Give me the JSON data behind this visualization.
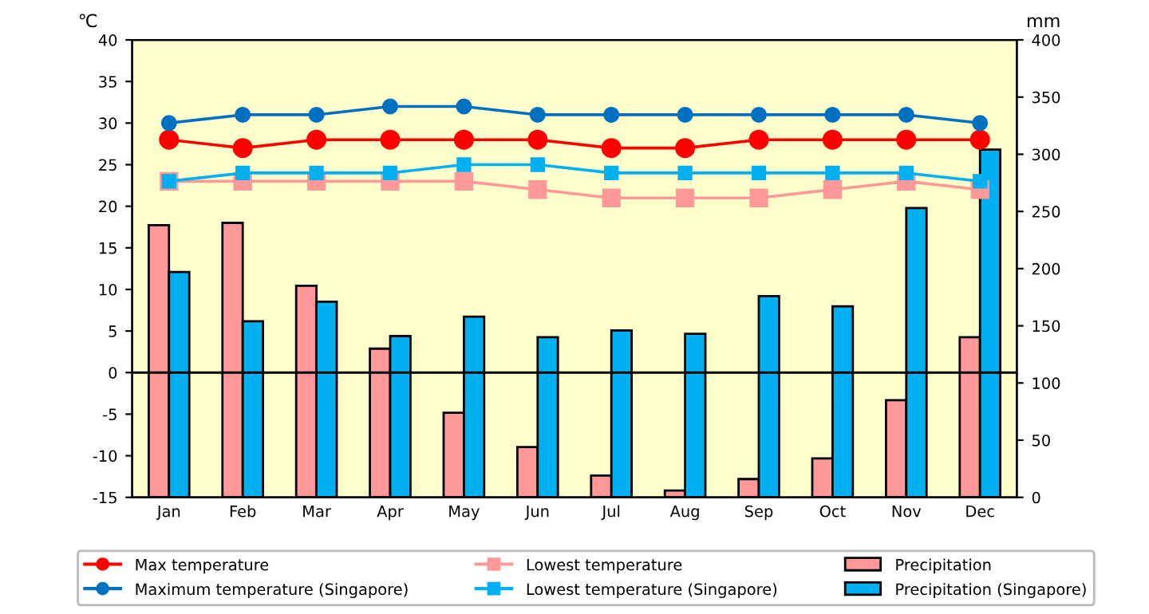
{
  "chart_data": {
    "type": "line",
    "ylabel": "℃",
    "y2label": "mm",
    "categories": [
      "Jan",
      "Feb",
      "Mar",
      "Apr",
      "May",
      "Jun",
      "Jul",
      "Aug",
      "Sep",
      "Oct",
      "Nov",
      "Dec"
    ],
    "series": [
      {
        "name": "Max temperature",
        "marker": "circle",
        "color": "#ff0000",
        "values": [
          28,
          27,
          28,
          28,
          28,
          28,
          27,
          27,
          28,
          28,
          28,
          28
        ]
      },
      {
        "name": "Lowest temperature",
        "marker": "square",
        "color": "#ff9999",
        "values": [
          23,
          23,
          23,
          23,
          23,
          22,
          21,
          21,
          21,
          22,
          23,
          22
        ]
      },
      {
        "name": "Precipitation",
        "type": "bar",
        "axis": "y2",
        "color": "#ff9999",
        "values": [
          238,
          240,
          185,
          130,
          74,
          44,
          19,
          6,
          16,
          34,
          85,
          140
        ]
      },
      {
        "name": "Maximum temperature (Singapore)",
        "marker": "circle",
        "color": "#0070c0",
        "values": [
          30,
          31,
          31,
          32,
          32,
          31,
          31,
          31,
          31,
          31,
          31,
          30
        ]
      },
      {
        "name": "Lowest temperature (Singapore)",
        "marker": "square",
        "color": "#00b0f0",
        "values": [
          23,
          24,
          24,
          24,
          25,
          25,
          24,
          24,
          24,
          24,
          24,
          23
        ]
      },
      {
        "name": "Precipitation (Singapore)",
        "type": "bar",
        "axis": "y2",
        "color": "#00b0f0",
        "values": [
          197,
          154,
          171,
          141,
          158,
          140,
          146,
          143,
          176,
          167,
          253,
          304
        ]
      }
    ],
    "ylim": [
      -15,
      40
    ],
    "yticks": [
      -15,
      -10,
      -5,
      0,
      5,
      10,
      15,
      20,
      25,
      30,
      35,
      40
    ],
    "y2lim": [
      0,
      400
    ],
    "y2ticks": [
      0,
      50,
      100,
      150,
      200,
      250,
      300,
      350,
      400
    ],
    "ref_lines": [
      {
        "axis": "y",
        "value": 0,
        "color": "#000000"
      }
    ],
    "legend": "bottom",
    "grid": false
  }
}
